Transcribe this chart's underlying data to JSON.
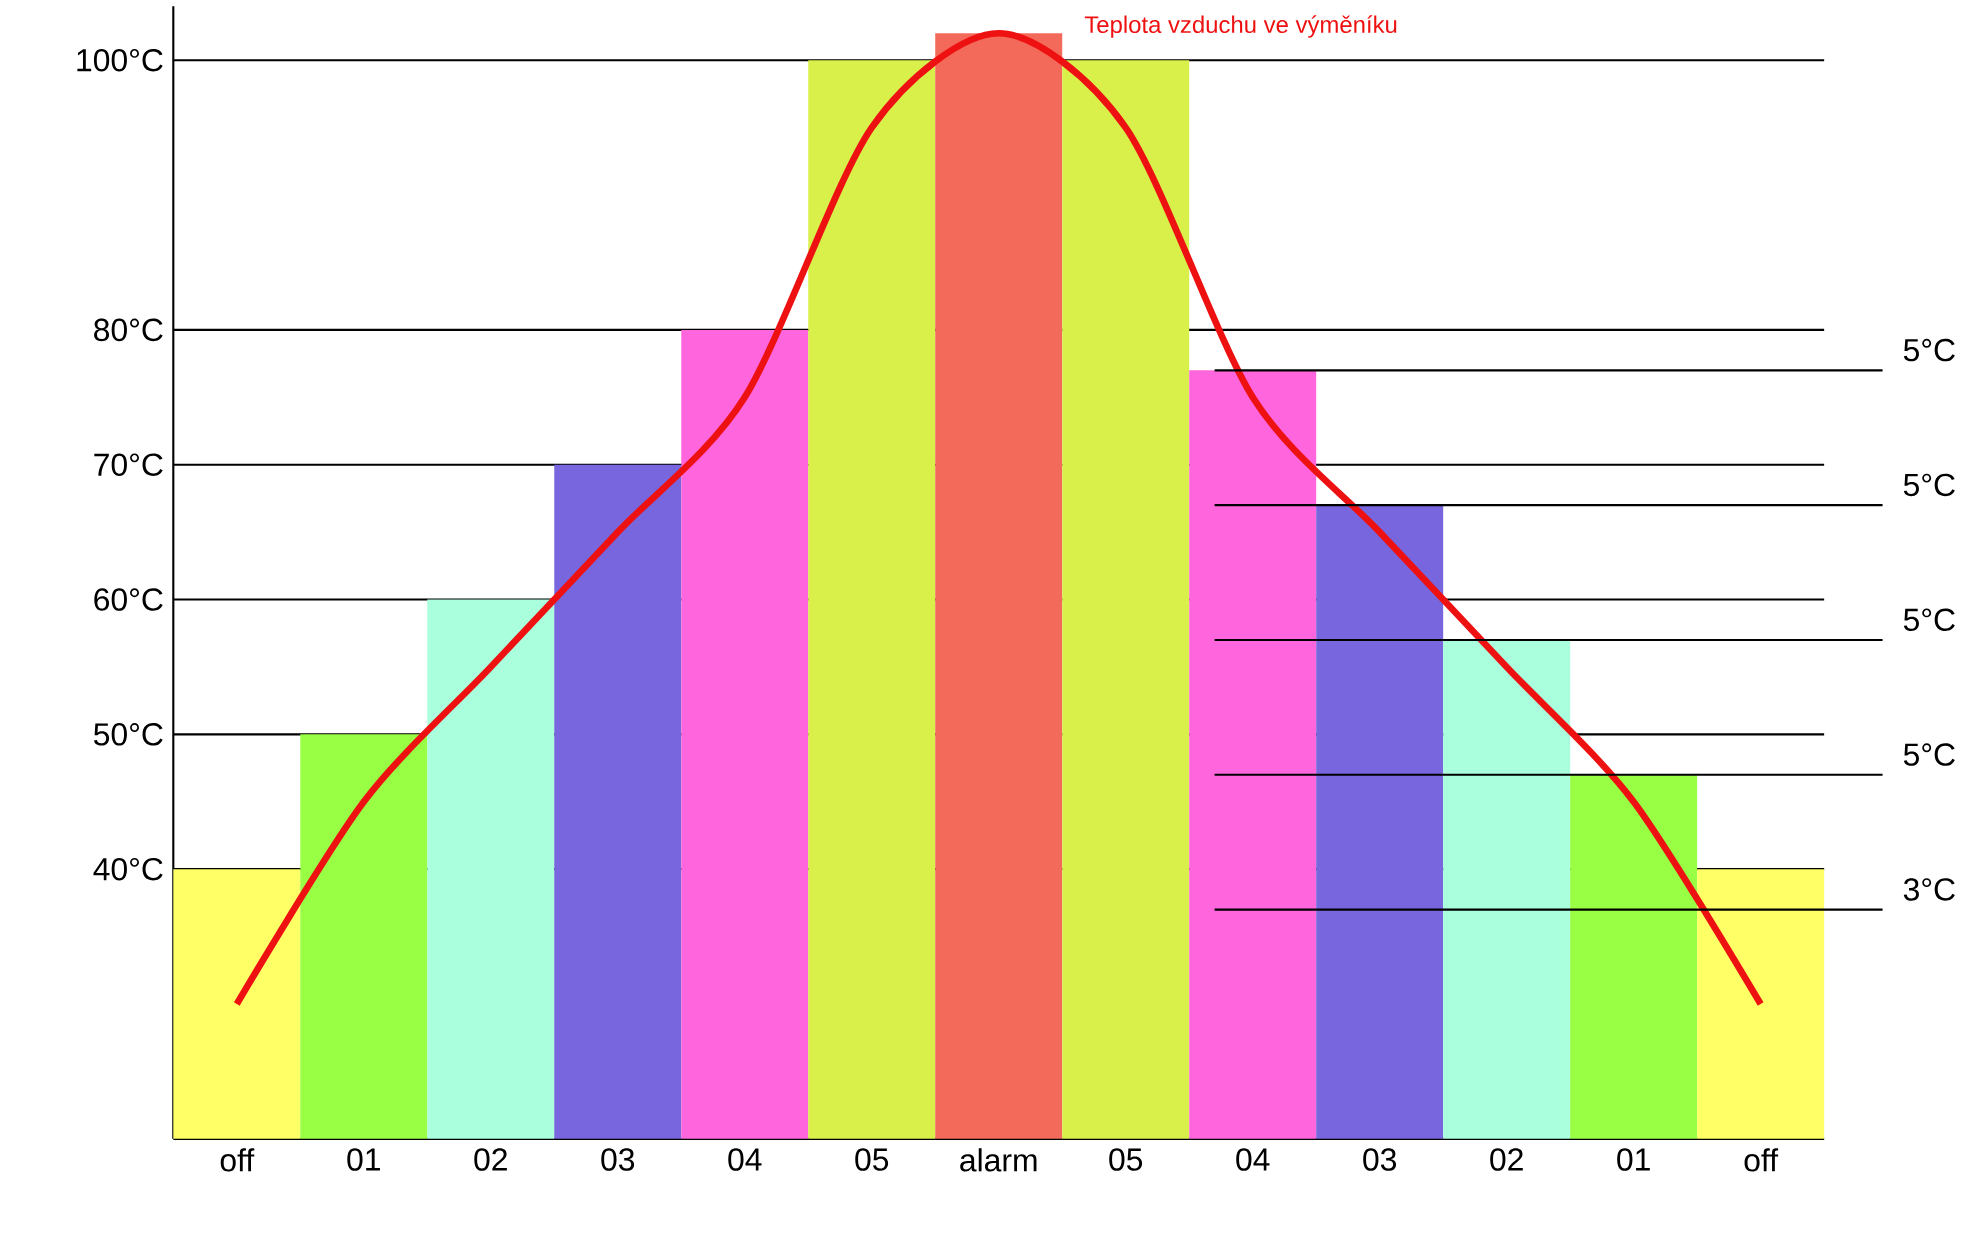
{
  "chart_data": {
    "type": "bar",
    "categories": [
      "off",
      "01",
      "02",
      "03",
      "04",
      "05",
      "alarm",
      "05",
      "04",
      "03",
      "02",
      "01",
      "off"
    ],
    "ylim": [
      20,
      104
    ],
    "yticks": [
      {
        "value": 40,
        "label": "40°C"
      },
      {
        "value": 50,
        "label": "50°C"
      },
      {
        "value": 60,
        "label": "60°C"
      },
      {
        "value": 70,
        "label": "70°C"
      },
      {
        "value": 80,
        "label": "80°C"
      },
      {
        "value": 100,
        "label": "100°C"
      }
    ],
    "grid": "y",
    "series": [
      {
        "values": [
          40,
          50,
          60,
          70,
          80,
          100,
          102,
          100,
          77,
          67,
          57,
          47,
          40
        ],
        "colors": [
          "#ffff66",
          "#99ff44",
          "#aaffdd",
          "#7766dd",
          "#ff66dd",
          "#d9f04a",
          "#f46a5a",
          "#d9f04a",
          "#ff66dd",
          "#7766dd",
          "#aaffdd",
          "#99ff44",
          "#ffff66"
        ]
      },
      {
        "type": "line",
        "name": "Teplota vzduchu ve výměníku",
        "color": "#ee1111",
        "values": [
          30,
          45,
          55,
          65,
          75,
          95,
          102,
          95,
          75,
          65,
          55,
          45,
          30
        ]
      }
    ],
    "ref_lines": [
      {
        "axis": "y",
        "value": 77
      },
      {
        "axis": "y",
        "value": 67
      },
      {
        "axis": "y",
        "value": 57
      },
      {
        "axis": "y",
        "value": 47
      },
      {
        "axis": "y",
        "value": 37
      }
    ],
    "annotations": [
      "5°C",
      "5°C",
      "5°C",
      "5°C",
      "3°C"
    ]
  }
}
